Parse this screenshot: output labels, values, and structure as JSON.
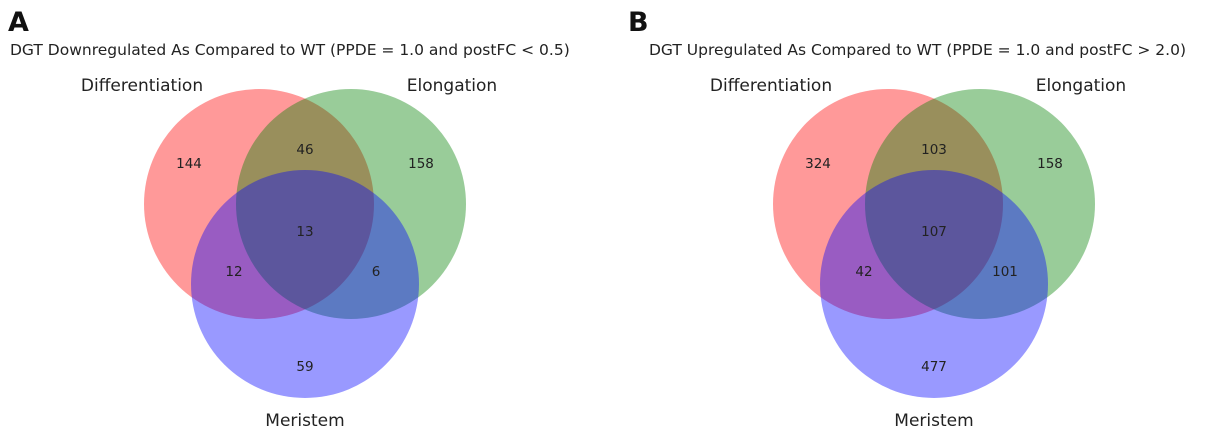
{
  "colors": {
    "differentiation": "#ff0000",
    "elongation": "#008000",
    "meristem": "#0000ff",
    "circle_opacity": 0.4
  },
  "panels": [
    {
      "letter": "A",
      "title": "DGT Downregulated As Compared to WT (PPDE = 1.0 and postFC < 0.5)",
      "sets": {
        "differentiation": "Differentiation",
        "elongation": "Elongation",
        "meristem": "Meristem"
      },
      "counts": {
        "differentiation_only": "144",
        "elongation_only": "158",
        "meristem_only": "59",
        "differentiation_elongation": "46",
        "differentiation_meristem": "12",
        "elongation_meristem": "6",
        "all_three": "13"
      }
    },
    {
      "letter": "B",
      "title": "DGT Upregulated As Compared to WT (PPDE = 1.0 and postFC > 2.0)",
      "sets": {
        "differentiation": "Differentiation",
        "elongation": "Elongation",
        "meristem": "Meristem"
      },
      "counts": {
        "differentiation_only": "324",
        "elongation_only": "158",
        "meristem_only": "477",
        "differentiation_elongation": "103",
        "differentiation_meristem": "42",
        "elongation_meristem": "101",
        "all_three": "107"
      }
    }
  ]
}
